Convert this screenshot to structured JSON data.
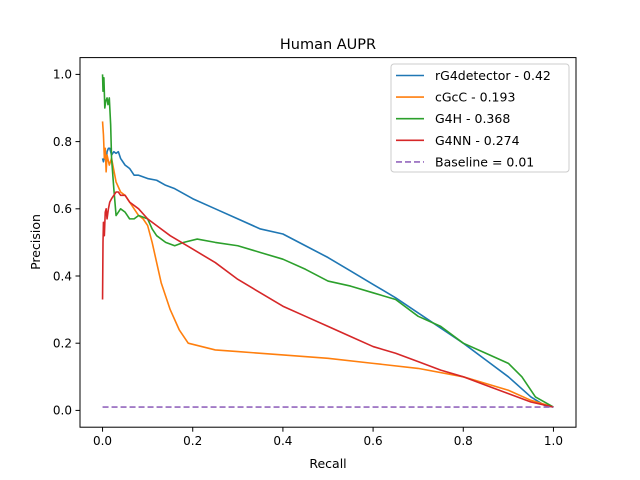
{
  "chart_data": {
    "type": "line",
    "title": "Human AUPR",
    "xlabel": "Recall",
    "ylabel": "Precision",
    "xlim": [
      -0.05,
      1.05
    ],
    "ylim": [
      -0.05,
      1.05
    ],
    "xticks": [
      0.0,
      0.2,
      0.4,
      0.6,
      0.8,
      1.0
    ],
    "yticks": [
      0.0,
      0.2,
      0.4,
      0.6,
      0.8,
      1.0
    ],
    "tick_labels": [
      "0.0",
      "0.2",
      "0.4",
      "0.6",
      "0.8",
      "1.0"
    ],
    "grid": false,
    "legend_position": "top-right",
    "series": [
      {
        "name": "rG4detector - 0.42",
        "color": "#1f77b4",
        "style": "solid",
        "x": [
          0.0,
          0.002,
          0.005,
          0.008,
          0.01,
          0.013,
          0.016,
          0.02,
          0.025,
          0.03,
          0.035,
          0.04,
          0.05,
          0.06,
          0.07,
          0.08,
          0.1,
          0.12,
          0.14,
          0.16,
          0.2,
          0.25,
          0.3,
          0.35,
          0.4,
          0.45,
          0.5,
          0.55,
          0.6,
          0.65,
          0.7,
          0.75,
          0.8,
          0.85,
          0.9,
          0.95,
          0.98,
          1.0
        ],
        "y": [
          0.75,
          0.74,
          0.76,
          0.74,
          0.77,
          0.78,
          0.78,
          0.76,
          0.77,
          0.765,
          0.77,
          0.75,
          0.73,
          0.72,
          0.7,
          0.7,
          0.69,
          0.685,
          0.67,
          0.66,
          0.63,
          0.6,
          0.57,
          0.54,
          0.525,
          0.49,
          0.455,
          0.415,
          0.375,
          0.335,
          0.29,
          0.245,
          0.2,
          0.15,
          0.1,
          0.04,
          0.015,
          0.01
        ]
      },
      {
        "name": "cGcC - 0.193",
        "color": "#ff7f0e",
        "style": "solid",
        "x": [
          0.0,
          0.002,
          0.004,
          0.006,
          0.008,
          0.01,
          0.015,
          0.02,
          0.03,
          0.04,
          0.05,
          0.06,
          0.07,
          0.08,
          0.09,
          0.1,
          0.11,
          0.12,
          0.13,
          0.15,
          0.17,
          0.19,
          0.25,
          0.3,
          0.4,
          0.5,
          0.6,
          0.7,
          0.8,
          0.9,
          0.95,
          1.0
        ],
        "y": [
          0.86,
          0.82,
          0.75,
          0.78,
          0.71,
          0.76,
          0.73,
          0.75,
          0.68,
          0.65,
          0.64,
          0.62,
          0.6,
          0.58,
          0.57,
          0.55,
          0.5,
          0.44,
          0.38,
          0.3,
          0.24,
          0.2,
          0.18,
          0.175,
          0.165,
          0.155,
          0.14,
          0.125,
          0.1,
          0.06,
          0.03,
          0.01
        ]
      },
      {
        "name": "G4H - 0.368",
        "color": "#2ca02c",
        "style": "solid",
        "x": [
          0.0,
          0.001,
          0.003,
          0.005,
          0.007,
          0.01,
          0.012,
          0.015,
          0.018,
          0.02,
          0.025,
          0.03,
          0.035,
          0.04,
          0.05,
          0.06,
          0.07,
          0.08,
          0.1,
          0.11,
          0.12,
          0.14,
          0.16,
          0.18,
          0.21,
          0.25,
          0.3,
          0.35,
          0.4,
          0.45,
          0.5,
          0.55,
          0.6,
          0.65,
          0.7,
          0.75,
          0.8,
          0.85,
          0.9,
          0.93,
          0.96,
          1.0
        ],
        "y": [
          1.0,
          0.95,
          0.99,
          0.9,
          0.92,
          0.93,
          0.91,
          0.93,
          0.85,
          0.75,
          0.66,
          0.58,
          0.59,
          0.6,
          0.59,
          0.57,
          0.57,
          0.58,
          0.57,
          0.54,
          0.52,
          0.5,
          0.49,
          0.5,
          0.51,
          0.5,
          0.49,
          0.47,
          0.45,
          0.42,
          0.385,
          0.37,
          0.35,
          0.33,
          0.28,
          0.25,
          0.2,
          0.17,
          0.14,
          0.1,
          0.04,
          0.01
        ]
      },
      {
        "name": "G4NN - 0.274",
        "color": "#d62728",
        "style": "solid",
        "x": [
          0.0,
          0.001,
          0.002,
          0.004,
          0.006,
          0.008,
          0.01,
          0.013,
          0.016,
          0.02,
          0.025,
          0.03,
          0.035,
          0.04,
          0.05,
          0.06,
          0.08,
          0.1,
          0.12,
          0.15,
          0.2,
          0.25,
          0.3,
          0.35,
          0.4,
          0.45,
          0.5,
          0.55,
          0.6,
          0.65,
          0.7,
          0.75,
          0.8,
          0.85,
          0.9,
          0.95,
          1.0
        ],
        "y": [
          0.33,
          0.5,
          0.56,
          0.52,
          0.59,
          0.6,
          0.57,
          0.6,
          0.62,
          0.63,
          0.64,
          0.65,
          0.65,
          0.64,
          0.64,
          0.62,
          0.6,
          0.57,
          0.55,
          0.52,
          0.48,
          0.44,
          0.39,
          0.35,
          0.31,
          0.28,
          0.25,
          0.22,
          0.19,
          0.17,
          0.145,
          0.12,
          0.1,
          0.075,
          0.05,
          0.025,
          0.01
        ]
      },
      {
        "name": "Baseline = 0.01",
        "color": "#9467bd",
        "style": "dashed",
        "x": [
          0.0,
          1.0
        ],
        "y": [
          0.01,
          0.01
        ]
      }
    ]
  }
}
